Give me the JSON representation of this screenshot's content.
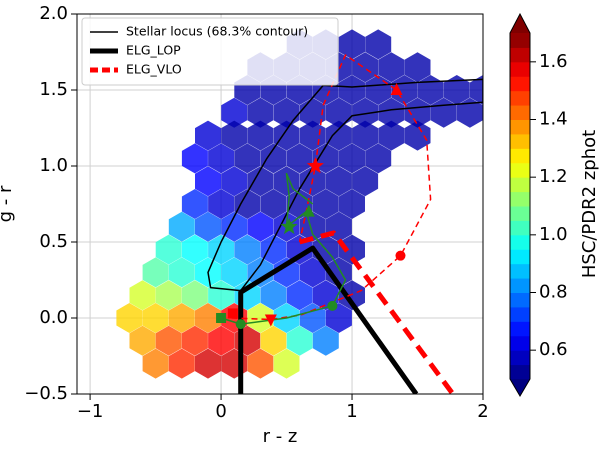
{
  "chart_data": {
    "type": "hexbin",
    "xlabel": "r - z",
    "ylabel": "g - r",
    "xlim": [
      -1.1,
      2
    ],
    "ylim": [
      -0.5,
      2.0
    ],
    "xticks": [
      {
        "value": -1,
        "label": "−1"
      },
      0,
      1,
      2
    ],
    "yticks": [
      {
        "value": -0.5,
        "label": "−0.5"
      },
      {
        "value": 0,
        "label": "0.0"
      },
      0.5,
      {
        "value": 1,
        "label": "1.0"
      },
      1.5,
      {
        "value": 2,
        "label": "2.0"
      }
    ],
    "grid": true,
    "cmap": "jet",
    "legend": "upper left",
    "colorbar": {
      "label": "HSC/PDR2 zphot",
      "lim": [
        0.5,
        1.7
      ],
      "ticks": [
        0.6,
        0.8,
        {
          "value": 1,
          "label": "1.0"
        },
        1.2,
        1.4,
        1.6
      ]
    },
    "hexbin": {
      "rows": [
        {
          "y": 1.8,
          "x": [
            0.6,
            0.8,
            1.0,
            1.2
          ],
          "z": [
            0.55,
            0.55,
            0.55,
            0.55
          ]
        },
        {
          "y": 1.65,
          "x": [
            0.3,
            0.5,
            0.7,
            0.9,
            1.1,
            1.3,
            1.5
          ],
          "z": [
            0.55,
            0.55,
            0.55,
            0.55,
            0.55,
            0.55,
            0.55
          ]
        },
        {
          "y": 1.5,
          "x": [
            0.2,
            0.4,
            0.6,
            0.8,
            1.0,
            1.2,
            1.4,
            1.6,
            1.8,
            2.0
          ],
          "z": [
            0.55,
            0.55,
            0.55,
            0.55,
            0.55,
            0.55,
            0.55,
            0.55,
            0.55,
            0.55
          ]
        },
        {
          "y": 1.35,
          "x": [
            0.1,
            0.3,
            0.5,
            0.7,
            0.9,
            1.1,
            1.3,
            1.5,
            1.7,
            1.9
          ],
          "z": [
            0.6,
            0.55,
            0.55,
            0.55,
            0.55,
            0.55,
            0.55,
            0.55,
            0.55,
            0.55
          ]
        },
        {
          "y": 1.2,
          "x": [
            -0.1,
            0.1,
            0.3,
            0.5,
            0.7,
            0.9,
            1.1,
            1.3,
            1.5
          ],
          "z": [
            0.6,
            0.55,
            0.55,
            0.55,
            0.55,
            0.55,
            0.55,
            0.55,
            0.55
          ]
        },
        {
          "y": 1.05,
          "x": [
            -0.2,
            0.0,
            0.2,
            0.4,
            0.6,
            0.8,
            1.0,
            1.2
          ],
          "z": [
            0.65,
            0.6,
            0.55,
            0.55,
            0.55,
            0.55,
            0.55,
            0.55
          ]
        },
        {
          "y": 0.9,
          "x": [
            -0.1,
            0.1,
            0.3,
            0.5,
            0.7,
            0.9,
            1.1
          ],
          "z": [
            0.65,
            0.6,
            0.55,
            0.55,
            0.55,
            0.55,
            0.55
          ]
        },
        {
          "y": 0.75,
          "x": [
            -0.2,
            0.0,
            0.2,
            0.4,
            0.6,
            0.8,
            1.0
          ],
          "z": [
            0.7,
            0.6,
            0.55,
            0.55,
            0.55,
            0.55,
            0.55
          ]
        },
        {
          "y": 0.6,
          "x": [
            -0.3,
            -0.1,
            0.1,
            0.3,
            0.5,
            0.7,
            0.9
          ],
          "z": [
            0.85,
            0.75,
            0.7,
            0.65,
            0.6,
            0.55,
            0.55
          ]
        },
        {
          "y": 0.45,
          "x": [
            -0.4,
            -0.2,
            0.0,
            0.2,
            0.4,
            0.6,
            0.8,
            1.0
          ],
          "z": [
            1.0,
            0.95,
            0.9,
            0.8,
            0.7,
            0.6,
            0.55,
            0.55
          ]
        },
        {
          "y": 0.3,
          "x": [
            -0.5,
            -0.3,
            -0.1,
            0.1,
            0.3,
            0.5,
            0.7,
            0.9
          ],
          "z": [
            1.05,
            1.0,
            0.95,
            0.9,
            0.8,
            0.7,
            0.6,
            0.55
          ]
        },
        {
          "y": 0.15,
          "x": [
            -0.6,
            -0.4,
            -0.2,
            0.0,
            0.2,
            0.4,
            0.6,
            0.8,
            1.0
          ],
          "z": [
            1.2,
            1.15,
            1.1,
            1.0,
            0.9,
            0.8,
            0.7,
            0.6,
            0.55
          ]
        },
        {
          "y": 0.0,
          "x": [
            -0.7,
            -0.5,
            -0.3,
            -0.1,
            0.1,
            0.3,
            0.5,
            0.7,
            0.9
          ],
          "z": [
            1.3,
            1.3,
            1.35,
            1.4,
            1.55,
            1.2,
            0.9,
            0.75,
            0.6
          ]
        },
        {
          "y": -0.15,
          "x": [
            -0.6,
            -0.4,
            -0.2,
            0.0,
            0.2,
            0.4,
            0.6,
            0.8
          ],
          "z": [
            1.35,
            1.45,
            1.5,
            1.55,
            1.6,
            1.3,
            1.0,
            0.8
          ]
        },
        {
          "y": -0.3,
          "x": [
            -0.5,
            -0.3,
            -0.1,
            0.1,
            0.3,
            0.5
          ],
          "z": [
            1.4,
            1.5,
            1.6,
            1.6,
            1.45,
            1.2
          ]
        }
      ]
    },
    "series": [
      {
        "name": "Stellar locus (68.3% contour)",
        "color": "#000000",
        "width": 1.5,
        "style": "solid",
        "closed": true,
        "x": [
          -0.08,
          0.15,
          0.3,
          0.45,
          0.6,
          0.85,
          1.0,
          1.3,
          1.7,
          2.0,
          2.0,
          1.5,
          1.0,
          0.78,
          0.55,
          0.35,
          0.15,
          0.0,
          -0.1
        ],
        "y": [
          0.2,
          0.18,
          0.35,
          0.6,
          0.85,
          1.2,
          1.33,
          1.37,
          1.4,
          1.42,
          1.57,
          1.55,
          1.52,
          1.53,
          1.3,
          1.05,
          0.75,
          0.5,
          0.3
        ]
      },
      {
        "name": "ELG_LOP",
        "color": "#000000",
        "width": 5,
        "style": "solid",
        "x": [
          0.15,
          0.15,
          0.7,
          1.49
        ],
        "y": [
          -0.5,
          0.17,
          0.46,
          -0.5
        ]
      },
      {
        "name": "ELG_VLO",
        "color": "#ff0000",
        "width": 5,
        "style": "dashed",
        "x": [
          0.6,
          0.86,
          1.77
        ],
        "y": [
          0.5,
          0.56,
          -0.5
        ]
      },
      {
        "color": "#ff0000",
        "width": 1.5,
        "style": "dashed",
        "x": [
          0.08,
          0.38,
          0.61,
          1.07,
          1.37,
          1.6,
          1.57,
          1.34,
          0.95,
          0.78,
          0.72,
          0.65,
          0.6
        ],
        "y": [
          0.0,
          -0.01,
          0.02,
          0.18,
          0.41,
          0.78,
          1.17,
          1.5,
          1.73,
          1.4,
          1.0,
          0.7,
          0.5
        ]
      },
      {
        "color": "#228b22",
        "width": 1.5,
        "style": "solid",
        "x": [
          0.0,
          0.15,
          0.5,
          0.85,
          0.95,
          0.85,
          0.7,
          0.65,
          0.5,
          0.52,
          0.5,
          0.55,
          0.7
        ],
        "y": [
          0.0,
          -0.04,
          0.0,
          0.08,
          0.25,
          0.4,
          0.55,
          0.7,
          0.6,
          0.8,
          0.95,
          0.85,
          0.75
        ]
      }
    ],
    "markers": [
      {
        "color": "#ff0000",
        "marker": [
          "*",
          "^",
          "o",
          "v",
          "s"
        ],
        "x": [
          0.72,
          1.34,
          1.37,
          0.38,
          0.09
        ],
        "y": [
          1.0,
          1.5,
          0.41,
          -0.01,
          0.03
        ]
      },
      {
        "color": "#228b22",
        "marker": [
          "s",
          "o",
          "o",
          "*",
          "^"
        ],
        "x": [
          0.0,
          0.15,
          0.85,
          0.52,
          0.67
        ],
        "y": [
          0.0,
          -0.04,
          0.08,
          0.6,
          0.7
        ]
      }
    ]
  }
}
